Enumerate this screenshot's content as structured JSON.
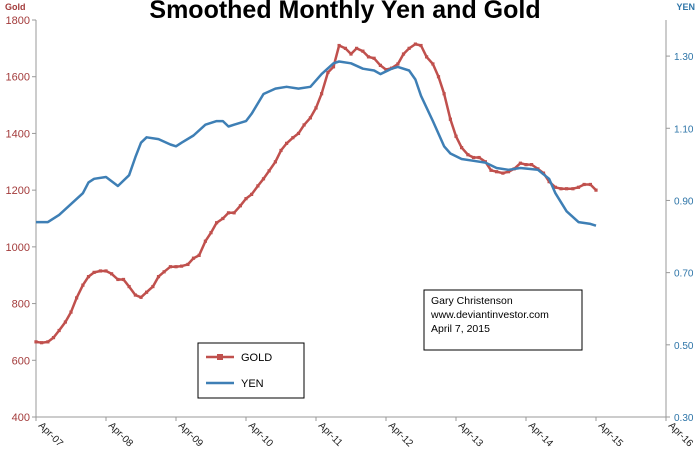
{
  "chart_data": {
    "type": "line",
    "title": "Smoothed Monthly Yen and Gold",
    "left_axis_label": "Gold",
    "right_axis_label": "YEN",
    "left_ylim": [
      400,
      1800
    ],
    "left_ticks": [
      400,
      600,
      800,
      1000,
      1200,
      1400,
      1600,
      1800
    ],
    "right_ylim": [
      0.3,
      1.4
    ],
    "right_ticks": [
      "0.30",
      "0.50",
      "0.70",
      "0.90",
      "1.10",
      "1.30"
    ],
    "right_tick_values": [
      0.3,
      0.5,
      0.7,
      0.9,
      1.1,
      1.3
    ],
    "x_ticks": [
      "Apr-07",
      "Apr-08",
      "Apr-09",
      "Apr-10",
      "Apr-11",
      "Apr-12",
      "Apr-13",
      "Apr-14",
      "Apr-15",
      "Apr-16"
    ],
    "x_range_years": [
      2007.25,
      2016.25
    ],
    "annotation": [
      "Gary Christenson",
      "www.deviantinvestor.com",
      "April 7, 2015"
    ],
    "series": [
      {
        "name": "GOLD",
        "axis": "left",
        "color": "#c0504d",
        "marker": "square",
        "points": [
          [
            2007.25,
            665
          ],
          [
            2007.33,
            662
          ],
          [
            2007.42,
            665
          ],
          [
            2007.5,
            680
          ],
          [
            2007.58,
            705
          ],
          [
            2007.67,
            735
          ],
          [
            2007.75,
            770
          ],
          [
            2007.83,
            820
          ],
          [
            2007.92,
            865
          ],
          [
            2008.0,
            895
          ],
          [
            2008.08,
            910
          ],
          [
            2008.17,
            915
          ],
          [
            2008.25,
            915
          ],
          [
            2008.33,
            905
          ],
          [
            2008.42,
            885
          ],
          [
            2008.5,
            885
          ],
          [
            2008.58,
            860
          ],
          [
            2008.67,
            830
          ],
          [
            2008.75,
            822
          ],
          [
            2008.83,
            840
          ],
          [
            2008.92,
            860
          ],
          [
            2009.0,
            895
          ],
          [
            2009.08,
            912
          ],
          [
            2009.17,
            930
          ],
          [
            2009.25,
            930
          ],
          [
            2009.33,
            932
          ],
          [
            2009.42,
            938
          ],
          [
            2009.5,
            960
          ],
          [
            2009.58,
            970
          ],
          [
            2009.67,
            1020
          ],
          [
            2009.75,
            1050
          ],
          [
            2009.83,
            1085
          ],
          [
            2009.92,
            1100
          ],
          [
            2010.0,
            1120
          ],
          [
            2010.08,
            1120
          ],
          [
            2010.17,
            1145
          ],
          [
            2010.25,
            1170
          ],
          [
            2010.33,
            1185
          ],
          [
            2010.42,
            1215
          ],
          [
            2010.5,
            1240
          ],
          [
            2010.58,
            1268
          ],
          [
            2010.67,
            1300
          ],
          [
            2010.75,
            1340
          ],
          [
            2010.83,
            1365
          ],
          [
            2010.92,
            1385
          ],
          [
            2011.0,
            1400
          ],
          [
            2011.08,
            1430
          ],
          [
            2011.17,
            1455
          ],
          [
            2011.25,
            1490
          ],
          [
            2011.33,
            1540
          ],
          [
            2011.42,
            1615
          ],
          [
            2011.5,
            1635
          ],
          [
            2011.58,
            1710
          ],
          [
            2011.67,
            1700
          ],
          [
            2011.75,
            1680
          ],
          [
            2011.83,
            1700
          ],
          [
            2011.92,
            1690
          ],
          [
            2012.0,
            1670
          ],
          [
            2012.08,
            1665
          ],
          [
            2012.17,
            1640
          ],
          [
            2012.25,
            1625
          ],
          [
            2012.33,
            1630
          ],
          [
            2012.42,
            1645
          ],
          [
            2012.5,
            1680
          ],
          [
            2012.58,
            1700
          ],
          [
            2012.67,
            1715
          ],
          [
            2012.75,
            1710
          ],
          [
            2012.83,
            1670
          ],
          [
            2012.92,
            1645
          ],
          [
            2013.0,
            1600
          ],
          [
            2013.08,
            1540
          ],
          [
            2013.17,
            1450
          ],
          [
            2013.25,
            1390
          ],
          [
            2013.33,
            1350
          ],
          [
            2013.42,
            1325
          ],
          [
            2013.5,
            1315
          ],
          [
            2013.58,
            1315
          ],
          [
            2013.67,
            1300
          ],
          [
            2013.75,
            1270
          ],
          [
            2013.83,
            1265
          ],
          [
            2013.92,
            1260
          ],
          [
            2014.0,
            1265
          ],
          [
            2014.08,
            1275
          ],
          [
            2014.17,
            1295
          ],
          [
            2014.25,
            1290
          ],
          [
            2014.33,
            1290
          ],
          [
            2014.42,
            1275
          ],
          [
            2014.5,
            1260
          ],
          [
            2014.58,
            1230
          ],
          [
            2014.67,
            1210
          ],
          [
            2014.75,
            1205
          ],
          [
            2014.83,
            1205
          ],
          [
            2014.92,
            1205
          ],
          [
            2015.0,
            1210
          ],
          [
            2015.08,
            1220
          ],
          [
            2015.17,
            1220
          ],
          [
            2015.25,
            1200
          ]
        ]
      },
      {
        "name": "YEN",
        "axis": "right",
        "color": "#3e7fb5",
        "marker": "none",
        "points": [
          [
            2007.25,
            0.84
          ],
          [
            2007.42,
            0.84
          ],
          [
            2007.58,
            0.86
          ],
          [
            2007.75,
            0.89
          ],
          [
            2007.92,
            0.92
          ],
          [
            2008.0,
            0.95
          ],
          [
            2008.08,
            0.96
          ],
          [
            2008.25,
            0.965
          ],
          [
            2008.42,
            0.94
          ],
          [
            2008.58,
            0.97
          ],
          [
            2008.67,
            1.02
          ],
          [
            2008.75,
            1.06
          ],
          [
            2008.83,
            1.075
          ],
          [
            2009.0,
            1.07
          ],
          [
            2009.17,
            1.055
          ],
          [
            2009.25,
            1.05
          ],
          [
            2009.33,
            1.06
          ],
          [
            2009.5,
            1.08
          ],
          [
            2009.67,
            1.11
          ],
          [
            2009.83,
            1.12
          ],
          [
            2009.92,
            1.12
          ],
          [
            2010.0,
            1.105
          ],
          [
            2010.08,
            1.11
          ],
          [
            2010.25,
            1.12
          ],
          [
            2010.33,
            1.14
          ],
          [
            2010.5,
            1.195
          ],
          [
            2010.67,
            1.21
          ],
          [
            2010.83,
            1.215
          ],
          [
            2011.0,
            1.21
          ],
          [
            2011.17,
            1.215
          ],
          [
            2011.33,
            1.25
          ],
          [
            2011.5,
            1.28
          ],
          [
            2011.58,
            1.285
          ],
          [
            2011.75,
            1.28
          ],
          [
            2011.92,
            1.265
          ],
          [
            2012.08,
            1.26
          ],
          [
            2012.17,
            1.25
          ],
          [
            2012.33,
            1.265
          ],
          [
            2012.42,
            1.27
          ],
          [
            2012.58,
            1.26
          ],
          [
            2012.67,
            1.235
          ],
          [
            2012.75,
            1.19
          ],
          [
            2012.92,
            1.12
          ],
          [
            2013.08,
            1.05
          ],
          [
            2013.17,
            1.03
          ],
          [
            2013.33,
            1.015
          ],
          [
            2013.5,
            1.01
          ],
          [
            2013.67,
            1.005
          ],
          [
            2013.83,
            0.99
          ],
          [
            2014.0,
            0.985
          ],
          [
            2014.17,
            0.99
          ],
          [
            2014.42,
            0.985
          ],
          [
            2014.58,
            0.96
          ],
          [
            2014.67,
            0.92
          ],
          [
            2014.83,
            0.87
          ],
          [
            2015.0,
            0.84
          ],
          [
            2015.17,
            0.835
          ],
          [
            2015.25,
            0.83
          ]
        ]
      }
    ]
  }
}
